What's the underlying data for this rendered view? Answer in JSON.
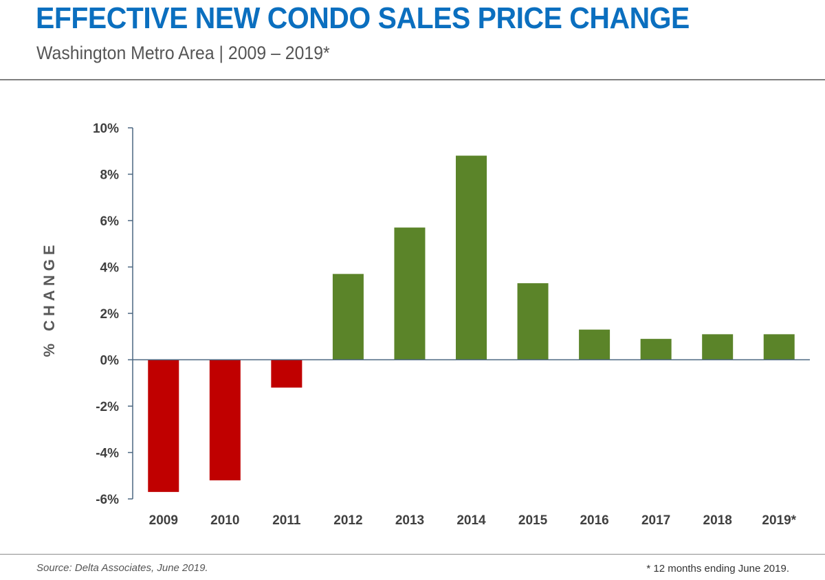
{
  "header": {
    "title": "EFFECTIVE NEW CONDO SALES PRICE CHANGE",
    "subtitle": "Washington Metro Area  |  2009 – 2019*"
  },
  "footer": {
    "source": "Source: Delta Associates, June 2019.",
    "footnote": "* 12 months ending June 2019."
  },
  "chart_data": {
    "type": "bar",
    "ylabel": "% CHANGE",
    "xlabel": "",
    "categories": [
      "2009",
      "2010",
      "2011",
      "2012",
      "2013",
      "2014",
      "2015",
      "2016",
      "2017",
      "2018",
      "2019*"
    ],
    "values": [
      -5.7,
      -5.2,
      -1.2,
      3.7,
      5.7,
      8.8,
      3.3,
      1.3,
      0.9,
      1.1,
      1.1
    ],
    "unit": "%",
    "ylim": [
      -6,
      10
    ],
    "yticks": [
      10,
      8,
      6,
      4,
      2,
      0,
      -2,
      -4,
      -6
    ],
    "ytick_labels": [
      "10%",
      "8%",
      "6%",
      "4%",
      "2%",
      "0%",
      "-2%",
      "-4%",
      "-6%"
    ],
    "grid": false,
    "legend": "none",
    "colors": {
      "positive": "#5b8429",
      "negative": "#c00000",
      "axis": "#4a6680"
    }
  }
}
